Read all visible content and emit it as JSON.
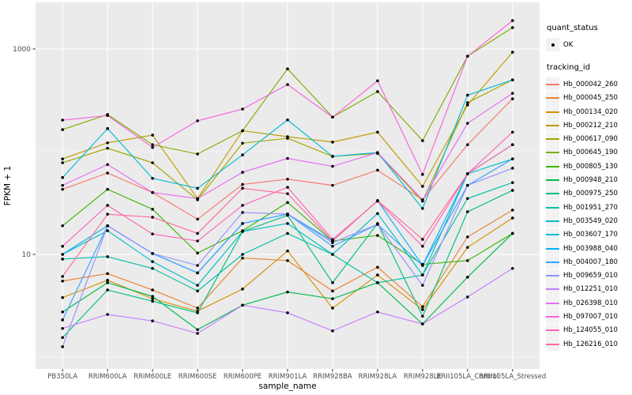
{
  "axes": {
    "x": {
      "title": "sample_name"
    },
    "y": {
      "title": "FPKM + 1",
      "tick_labels": [
        "1000",
        "10"
      ]
    }
  },
  "legend": {
    "quant_status": {
      "title": "quant_status",
      "items": [
        {
          "label": "OK",
          "marker": "black-point"
        }
      ]
    },
    "tracking_id": {
      "title": "tracking_id"
    }
  },
  "colors": {
    "panel_background": "#EBEBEB",
    "gridline": "#FFFFFF",
    "tick_label": "#4D4D4D",
    "legend_key": "#F2F2F2",
    "point": "#000000"
  },
  "chart_data": {
    "type": "line",
    "title": "",
    "xlabel": "sample_name",
    "ylabel": "FPKM + 1",
    "y_scale": "log10",
    "ylim": [
      0.77,
      2845
    ],
    "y_major_ticks": [
      1000,
      10
    ],
    "y_minor_gridlines": [
      100,
      1
    ],
    "grid": true,
    "legend_position": "right",
    "point_marker": {
      "shape": "circle",
      "color": "#000000",
      "status_label": "OK"
    },
    "categories": [
      "PB350LA",
      "RRIM600LA",
      "RRIM600LE",
      "RRIM600SE",
      "RRIM600PE",
      "RRIM901LA",
      "RRIM928BA",
      "RRIM928LA",
      "RRIM928LE",
      "RRII105LA_Control",
      "RRII105LA_Stressed"
    ],
    "series": [
      {
        "name": "Hb_000042_260",
        "color": "#F8766D",
        "values": [
          43,
          62,
          40,
          22,
          48,
          54,
          47,
          66,
          34,
          117,
          327
        ]
      },
      {
        "name": "Hb_000045_250",
        "color": "#EA8331",
        "values": [
          5.5,
          6.5,
          4.5,
          3,
          9.2,
          8.7,
          4.4,
          7.5,
          3.1,
          14.8,
          27
        ]
      },
      {
        "name": "Hb_000134_020",
        "color": "#D89000",
        "values": [
          3.8,
          5.6,
          3.7,
          2.8,
          4.6,
          10.8,
          3,
          6.3,
          2.9,
          11.7,
          22.6
        ]
      },
      {
        "name": "Hb_000212_210",
        "color": "#C09B00",
        "values": [
          85,
          122,
          145,
          35,
          160,
          140,
          124,
          155,
          46,
          285,
          930
        ]
      },
      {
        "name": "Hb_000617_090",
        "color": "#A3A500",
        "values": [
          78,
          108,
          78,
          34,
          121,
          135,
          90,
          96,
          33,
          300,
          500
        ]
      },
      {
        "name": "Hb_000645_190",
        "color": "#7CAE00",
        "values": [
          164,
          230,
          117,
          95,
          160,
          640,
          217,
          385,
          128,
          850,
          1615
        ]
      },
      {
        "name": "Hb_000805_130",
        "color": "#39B600",
        "values": [
          19,
          43,
          27.5,
          10.3,
          17,
          32,
          13.5,
          15.3,
          8,
          8.7,
          16
        ]
      },
      {
        "name": "Hb_000948_210",
        "color": "#00BB4E",
        "values": [
          2.75,
          5.3,
          3.9,
          1.85,
          3.2,
          4.3,
          3.7,
          5.3,
          2.1,
          6,
          16
        ]
      },
      {
        "name": "Hb_000975_250",
        "color": "#00BF7D",
        "values": [
          1.55,
          4.5,
          3.5,
          2.7,
          16.7,
          24,
          5.3,
          20,
          2.5,
          26,
          42
        ]
      },
      {
        "name": "Hb_001951_270",
        "color": "#00C1A3",
        "values": [
          9,
          9.5,
          7.3,
          4.4,
          10,
          16,
          10,
          5.3,
          6.3,
          35,
          50
        ]
      },
      {
        "name": "Hb_003549_020",
        "color": "#00BFC4",
        "values": [
          10,
          17,
          8.5,
          5,
          16.7,
          20,
          10,
          25,
          6.3,
          61,
          85
        ]
      },
      {
        "name": "Hb_003607_170",
        "color": "#00BBDA",
        "values": [
          56,
          168,
          55,
          44,
          93,
          204,
          90,
          98,
          28,
          355,
          500
        ]
      },
      {
        "name": "Hb_003988_040",
        "color": "#00B0F6",
        "values": [
          10,
          19,
          10.2,
          6.6,
          20,
          24.7,
          13.5,
          33.4,
          7.8,
          61,
          117
        ]
      },
      {
        "name": "Hb_004007_180",
        "color": "#35A2FF",
        "values": [
          2.3,
          19,
          10.2,
          6.6,
          20,
          24.7,
          12,
          19.6,
          7.8,
          47,
          85
        ]
      },
      {
        "name": "Hb_009659_010",
        "color": "#9590FF",
        "values": [
          1.26,
          19,
          10.2,
          7.8,
          25.6,
          24.7,
          13,
          19.6,
          5,
          47,
          69
        ]
      },
      {
        "name": "Hb_012251_010",
        "color": "#C77CFF",
        "values": [
          1.9,
          2.6,
          2.25,
          1.7,
          3.2,
          2.7,
          1.8,
          2.75,
          2.1,
          3.85,
          7.3
        ]
      },
      {
        "name": "Hb_026398_010",
        "color": "#E76BF3",
        "values": [
          47,
          75,
          40,
          35,
          63,
          86,
          72,
          98,
          34,
          189,
          370
        ]
      },
      {
        "name": "Hb_097007_010",
        "color": "#FA62DB",
        "values": [
          203,
          225,
          110,
          200,
          260,
          450,
          217,
          490,
          60,
          850,
          1890
        ]
      },
      {
        "name": "Hb_124055_010",
        "color": "#FF62BC",
        "values": [
          12,
          30,
          15.8,
          13.5,
          30,
          45,
          14,
          33,
          12,
          61,
          155
        ]
      },
      {
        "name": "Hb_126216_010",
        "color": "#FF6A98",
        "values": [
          6.1,
          24.6,
          23,
          16,
          44,
          39,
          13.5,
          33.4,
          14,
          61,
          117
        ]
      }
    ]
  }
}
